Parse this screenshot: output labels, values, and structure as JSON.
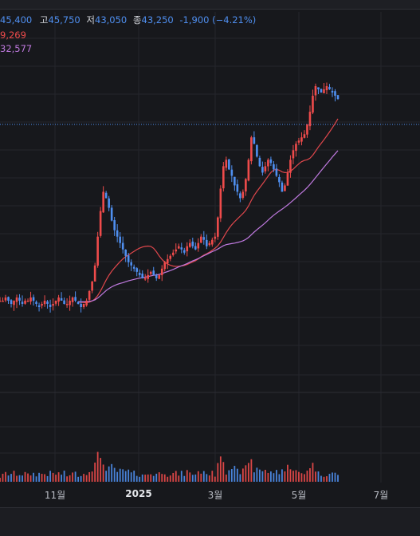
{
  "header": {
    "open_value": "45,400",
    "high_label": "고",
    "high_value": "45,750",
    "low_label": "저",
    "low_value": "43,050",
    "close_label": "종",
    "close_value": "43,250",
    "change": "-1,900",
    "change_pct": "(−4.21%)"
  },
  "ma": {
    "ma_a_value": "9,269",
    "ma_b_value": "32,577"
  },
  "colors": {
    "background": "#17181c",
    "up": "#ef4b4b",
    "down": "#4f8ff0",
    "ma_red": "#e0474c",
    "ma_purple": "#c07ae0",
    "grid": "#24262c"
  },
  "xaxis": {
    "labels": [
      "11월",
      "2025",
      "3월",
      "5월",
      "7월"
    ]
  },
  "chart_data": {
    "type": "candlestick",
    "x_labels": [
      "11월",
      "2025",
      "3월",
      "5월",
      "7월"
    ],
    "last_close": 43250,
    "series": [
      {
        "values": [
          0.3,
          0.3,
          0.31,
          0.3,
          0.29,
          0.3,
          0.31,
          0.3,
          0.29,
          0.3,
          0.3,
          0.31,
          0.3,
          0.29,
          0.28,
          0.29,
          0.3,
          0.29,
          0.28,
          0.29,
          0.3,
          0.31,
          0.3,
          0.29,
          0.29,
          0.3,
          0.31,
          0.3,
          0.29,
          0.28,
          0.29,
          0.3,
          0.33,
          0.36,
          0.41,
          0.5,
          0.58,
          0.64,
          0.62,
          0.59,
          0.55,
          0.52,
          0.5,
          0.48,
          0.46,
          0.44,
          0.42,
          0.41,
          0.4,
          0.39,
          0.38,
          0.37,
          0.37,
          0.38,
          0.39,
          0.38,
          0.37,
          0.38,
          0.4,
          0.42,
          0.43,
          0.44,
          0.45,
          0.46,
          0.47,
          0.46,
          0.45,
          0.47,
          0.48,
          0.47,
          0.46,
          0.48,
          0.5,
          0.49,
          0.47,
          0.48,
          0.49,
          0.5,
          0.56,
          0.65,
          0.72,
          0.74,
          0.71,
          0.69,
          0.66,
          0.64,
          0.62,
          0.64,
          0.68,
          0.74,
          0.81,
          0.79,
          0.75,
          0.72,
          0.7,
          0.72,
          0.74,
          0.73,
          0.71,
          0.69,
          0.67,
          0.64,
          0.66,
          0.7,
          0.74,
          0.77,
          0.79,
          0.8,
          0.81,
          0.82,
          0.85,
          0.89,
          0.94,
          0.97,
          0.96,
          0.95,
          0.96,
          0.97,
          0.96,
          0.95,
          0.94,
          0.93
        ]
      }
    ]
  }
}
